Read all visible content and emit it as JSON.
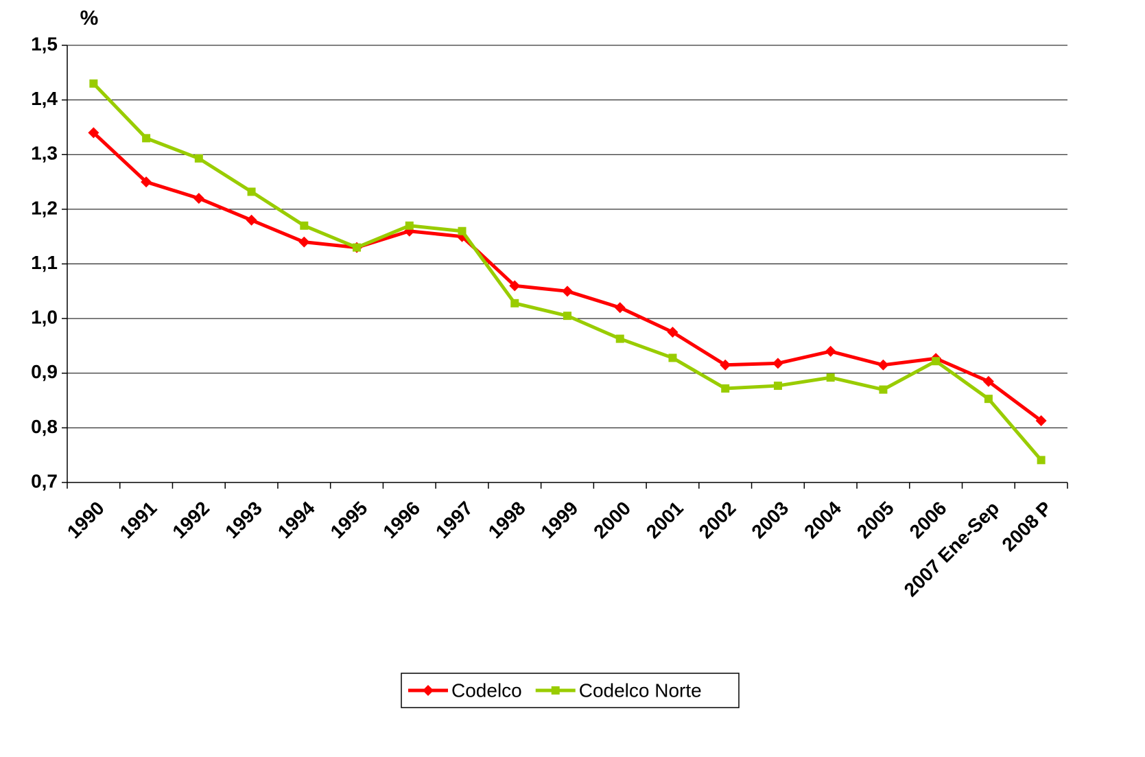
{
  "chart_data": {
    "type": "line",
    "y_label": "%",
    "categories": [
      "1990",
      "1991",
      "1992",
      "1993",
      "1994",
      "1995",
      "1996",
      "1997",
      "1998",
      "1999",
      "2000",
      "2001",
      "2002",
      "2003",
      "2004",
      "2005",
      "2006",
      "2007 Ene-Sep",
      "2008 P"
    ],
    "series": [
      {
        "name": "Codelco",
        "color": "#ff0000",
        "marker": "diamond",
        "values": [
          1.34,
          1.25,
          1.22,
          1.18,
          1.14,
          1.13,
          1.16,
          1.15,
          1.06,
          1.05,
          1.02,
          0.975,
          0.915,
          0.918,
          0.94,
          0.915,
          0.927,
          0.885,
          0.813
        ]
      },
      {
        "name": "Codelco Norte",
        "color": "#99cc00",
        "marker": "square",
        "values": [
          1.43,
          1.33,
          1.293,
          1.232,
          1.17,
          1.13,
          1.17,
          1.16,
          1.028,
          1.005,
          0.963,
          0.928,
          0.872,
          0.877,
          0.892,
          0.87,
          0.922,
          0.853,
          0.741
        ]
      }
    ],
    "ylim": [
      0.7,
      1.5
    ],
    "yticks": [
      {
        "value": 0.7,
        "label": "0,7"
      },
      {
        "value": 0.8,
        "label": "0,8"
      },
      {
        "value": 0.9,
        "label": "0,9"
      },
      {
        "value": 1,
        "label": "1,0"
      },
      {
        "value": 1.1,
        "label": "1,1"
      },
      {
        "value": 1.2,
        "label": "1,2"
      },
      {
        "value": 1.3,
        "label": "1,3"
      },
      {
        "value": 1.4,
        "label": "1,4"
      },
      {
        "value": 1.5,
        "label": "1,5"
      }
    ],
    "grid": true,
    "legend": "bottom"
  }
}
